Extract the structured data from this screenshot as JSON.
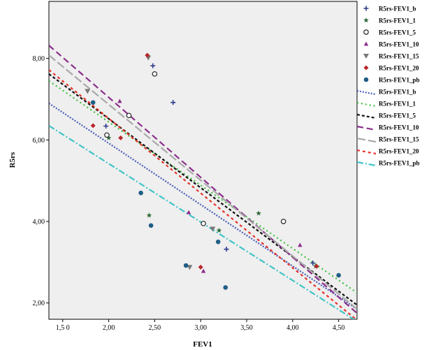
{
  "chart_data": {
    "type": "scatter",
    "xlabel": "FEV1",
    "ylabel": "R5rs",
    "xlim": [
      1.35,
      4.7
    ],
    "ylim": [
      1.6,
      9.4
    ],
    "x_ticks": [
      1.5,
      2.0,
      2.5,
      3.0,
      3.5,
      4.0,
      4.5
    ],
    "x_tick_labels": [
      "1,5 0",
      "2,00",
      "2,50",
      "3,00",
      "3,50",
      "4,00",
      "4,50"
    ],
    "y_ticks": [
      2,
      4,
      6,
      8
    ],
    "y_tick_labels": [
      "2,00",
      "4,00",
      "6,00",
      "8,00"
    ],
    "background": "#efefef",
    "grid": false,
    "legend_position": "right",
    "series": [
      {
        "name": "R5rs-FEV1_b",
        "marker": "plus",
        "color": "#2e3a8c",
        "points": [
          [
            1.97,
            6.34
          ],
          [
            2.48,
            7.82
          ],
          [
            2.7,
            6.92
          ],
          [
            3.28,
            3.32
          ],
          [
            4.22,
            2.98
          ]
        ]
      },
      {
        "name": "R5rs-FEV1_1",
        "marker": "star",
        "color": "#2e6b3a",
        "points": [
          [
            2.0,
            6.05
          ],
          [
            2.44,
            4.15
          ],
          [
            3.2,
            3.78
          ],
          [
            3.63,
            4.2
          ],
          [
            4.25,
            2.9
          ]
        ]
      },
      {
        "name": "R5rs-FEV1_5",
        "marker": "circle-open",
        "color": "#333333",
        "points": [
          [
            1.98,
            6.12
          ],
          [
            2.22,
            6.6
          ],
          [
            2.5,
            7.62
          ],
          [
            3.03,
            3.95
          ],
          [
            3.9,
            4.0
          ]
        ]
      },
      {
        "name": "R5rs-FEV1_10",
        "marker": "triangle",
        "color": "#8b2f8b",
        "points": [
          [
            2.12,
            6.95
          ],
          [
            2.87,
            4.22
          ],
          [
            3.03,
            2.78
          ],
          [
            4.08,
            3.42
          ]
        ]
      },
      {
        "name": "R5rs-FEV1_15",
        "marker": "triangle-down",
        "color": "#777777",
        "points": [
          [
            1.77,
            7.2
          ],
          [
            2.43,
            8.02
          ],
          [
            2.88,
            2.88
          ],
          [
            3.13,
            3.82
          ]
        ]
      },
      {
        "name": "R5rs-FEV1_20",
        "marker": "diamond",
        "color": "#b8262a",
        "points": [
          [
            1.83,
            6.35
          ],
          [
            2.13,
            6.05
          ],
          [
            2.42,
            8.08
          ],
          [
            3.0,
            2.88
          ],
          [
            4.26,
            2.9
          ]
        ]
      },
      {
        "name": "R5rs-FEV1_pb",
        "marker": "circle",
        "color": "#1f5e85",
        "points": [
          [
            1.83,
            6.92
          ],
          [
            2.35,
            4.7
          ],
          [
            2.46,
            3.9
          ],
          [
            2.84,
            2.92
          ],
          [
            3.19,
            3.5
          ],
          [
            3.27,
            2.38
          ],
          [
            4.5,
            2.68
          ]
        ]
      }
    ],
    "fit_lines": [
      {
        "name": "R5rs-FEV1_b",
        "color": "#4a5cb8",
        "dash": "2,2",
        "x1": 1.35,
        "y1": 6.9,
        "x2": 4.7,
        "y2": 1.85
      },
      {
        "name": "R5rs-FEV1_1",
        "color": "#3fbf3f",
        "dash": "2,4",
        "x1": 1.35,
        "y1": 7.45,
        "x2": 4.7,
        "y2": 2.25
      },
      {
        "name": "R5rs-FEV1_5",
        "color": "#111111",
        "dash": "4,3",
        "x1": 1.35,
        "y1": 7.62,
        "x2": 4.7,
        "y2": 1.95
      },
      {
        "name": "R5rs-FEV1_10",
        "color": "#8b2f8b",
        "dash": "9,5",
        "x1": 1.35,
        "y1": 8.32,
        "x2": 4.7,
        "y2": 1.75
      },
      {
        "name": "R5rs-FEV1_15",
        "color": "#a9a9a9",
        "dash": "12,4",
        "x1": 1.35,
        "y1": 8.08,
        "x2": 4.7,
        "y2": 1.85
      },
      {
        "name": "R5rs-FEV1_20",
        "color": "#e5332b",
        "dash": "4,4",
        "x1": 1.35,
        "y1": 7.72,
        "x2": 4.7,
        "y2": 1.58
      },
      {
        "name": "R5rs-FEV1_pb",
        "color": "#40c4c8",
        "dash": "9,3,2,3",
        "x1": 1.35,
        "y1": 6.35,
        "x2": 4.7,
        "y2": 1.55
      }
    ]
  }
}
